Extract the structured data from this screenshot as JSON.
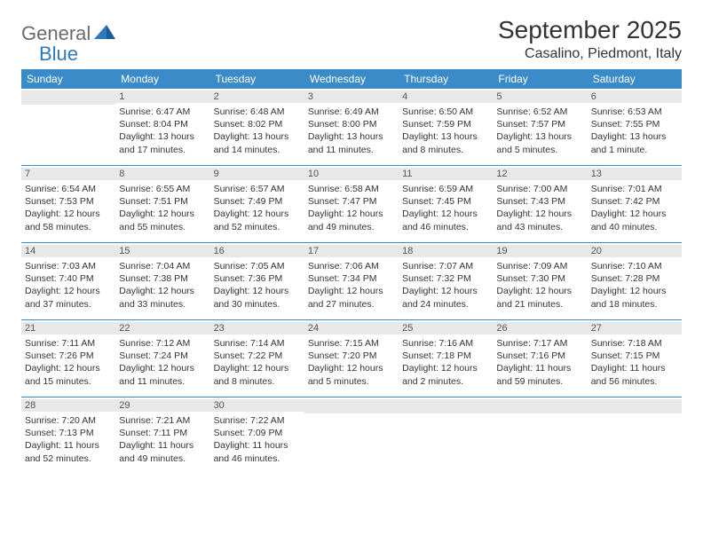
{
  "logo": {
    "textA": "General",
    "textB": "Blue"
  },
  "title": "September 2025",
  "location": "Casalino, Piedmont, Italy",
  "colors": {
    "header_blue": "#3b8bc9",
    "logo_blue": "#2f78bd",
    "logo_gray": "#6b6b6b",
    "day_strip": "#e8e8e8",
    "text": "#333333",
    "white": "#ffffff"
  },
  "dayNames": [
    "Sunday",
    "Monday",
    "Tuesday",
    "Wednesday",
    "Thursday",
    "Friday",
    "Saturday"
  ],
  "weeks": [
    [
      null,
      {
        "n": "1",
        "sr": "Sunrise: 6:47 AM",
        "ss": "Sunset: 8:04 PM",
        "dl1": "Daylight: 13 hours",
        "dl2": "and 17 minutes."
      },
      {
        "n": "2",
        "sr": "Sunrise: 6:48 AM",
        "ss": "Sunset: 8:02 PM",
        "dl1": "Daylight: 13 hours",
        "dl2": "and 14 minutes."
      },
      {
        "n": "3",
        "sr": "Sunrise: 6:49 AM",
        "ss": "Sunset: 8:00 PM",
        "dl1": "Daylight: 13 hours",
        "dl2": "and 11 minutes."
      },
      {
        "n": "4",
        "sr": "Sunrise: 6:50 AM",
        "ss": "Sunset: 7:59 PM",
        "dl1": "Daylight: 13 hours",
        "dl2": "and 8 minutes."
      },
      {
        "n": "5",
        "sr": "Sunrise: 6:52 AM",
        "ss": "Sunset: 7:57 PM",
        "dl1": "Daylight: 13 hours",
        "dl2": "and 5 minutes."
      },
      {
        "n": "6",
        "sr": "Sunrise: 6:53 AM",
        "ss": "Sunset: 7:55 PM",
        "dl1": "Daylight: 13 hours",
        "dl2": "and 1 minute."
      }
    ],
    [
      {
        "n": "7",
        "sr": "Sunrise: 6:54 AM",
        "ss": "Sunset: 7:53 PM",
        "dl1": "Daylight: 12 hours",
        "dl2": "and 58 minutes."
      },
      {
        "n": "8",
        "sr": "Sunrise: 6:55 AM",
        "ss": "Sunset: 7:51 PM",
        "dl1": "Daylight: 12 hours",
        "dl2": "and 55 minutes."
      },
      {
        "n": "9",
        "sr": "Sunrise: 6:57 AM",
        "ss": "Sunset: 7:49 PM",
        "dl1": "Daylight: 12 hours",
        "dl2": "and 52 minutes."
      },
      {
        "n": "10",
        "sr": "Sunrise: 6:58 AM",
        "ss": "Sunset: 7:47 PM",
        "dl1": "Daylight: 12 hours",
        "dl2": "and 49 minutes."
      },
      {
        "n": "11",
        "sr": "Sunrise: 6:59 AM",
        "ss": "Sunset: 7:45 PM",
        "dl1": "Daylight: 12 hours",
        "dl2": "and 46 minutes."
      },
      {
        "n": "12",
        "sr": "Sunrise: 7:00 AM",
        "ss": "Sunset: 7:43 PM",
        "dl1": "Daylight: 12 hours",
        "dl2": "and 43 minutes."
      },
      {
        "n": "13",
        "sr": "Sunrise: 7:01 AM",
        "ss": "Sunset: 7:42 PM",
        "dl1": "Daylight: 12 hours",
        "dl2": "and 40 minutes."
      }
    ],
    [
      {
        "n": "14",
        "sr": "Sunrise: 7:03 AM",
        "ss": "Sunset: 7:40 PM",
        "dl1": "Daylight: 12 hours",
        "dl2": "and 37 minutes."
      },
      {
        "n": "15",
        "sr": "Sunrise: 7:04 AM",
        "ss": "Sunset: 7:38 PM",
        "dl1": "Daylight: 12 hours",
        "dl2": "and 33 minutes."
      },
      {
        "n": "16",
        "sr": "Sunrise: 7:05 AM",
        "ss": "Sunset: 7:36 PM",
        "dl1": "Daylight: 12 hours",
        "dl2": "and 30 minutes."
      },
      {
        "n": "17",
        "sr": "Sunrise: 7:06 AM",
        "ss": "Sunset: 7:34 PM",
        "dl1": "Daylight: 12 hours",
        "dl2": "and 27 minutes."
      },
      {
        "n": "18",
        "sr": "Sunrise: 7:07 AM",
        "ss": "Sunset: 7:32 PM",
        "dl1": "Daylight: 12 hours",
        "dl2": "and 24 minutes."
      },
      {
        "n": "19",
        "sr": "Sunrise: 7:09 AM",
        "ss": "Sunset: 7:30 PM",
        "dl1": "Daylight: 12 hours",
        "dl2": "and 21 minutes."
      },
      {
        "n": "20",
        "sr": "Sunrise: 7:10 AM",
        "ss": "Sunset: 7:28 PM",
        "dl1": "Daylight: 12 hours",
        "dl2": "and 18 minutes."
      }
    ],
    [
      {
        "n": "21",
        "sr": "Sunrise: 7:11 AM",
        "ss": "Sunset: 7:26 PM",
        "dl1": "Daylight: 12 hours",
        "dl2": "and 15 minutes."
      },
      {
        "n": "22",
        "sr": "Sunrise: 7:12 AM",
        "ss": "Sunset: 7:24 PM",
        "dl1": "Daylight: 12 hours",
        "dl2": "and 11 minutes."
      },
      {
        "n": "23",
        "sr": "Sunrise: 7:14 AM",
        "ss": "Sunset: 7:22 PM",
        "dl1": "Daylight: 12 hours",
        "dl2": "and 8 minutes."
      },
      {
        "n": "24",
        "sr": "Sunrise: 7:15 AM",
        "ss": "Sunset: 7:20 PM",
        "dl1": "Daylight: 12 hours",
        "dl2": "and 5 minutes."
      },
      {
        "n": "25",
        "sr": "Sunrise: 7:16 AM",
        "ss": "Sunset: 7:18 PM",
        "dl1": "Daylight: 12 hours",
        "dl2": "and 2 minutes."
      },
      {
        "n": "26",
        "sr": "Sunrise: 7:17 AM",
        "ss": "Sunset: 7:16 PM",
        "dl1": "Daylight: 11 hours",
        "dl2": "and 59 minutes."
      },
      {
        "n": "27",
        "sr": "Sunrise: 7:18 AM",
        "ss": "Sunset: 7:15 PM",
        "dl1": "Daylight: 11 hours",
        "dl2": "and 56 minutes."
      }
    ],
    [
      {
        "n": "28",
        "sr": "Sunrise: 7:20 AM",
        "ss": "Sunset: 7:13 PM",
        "dl1": "Daylight: 11 hours",
        "dl2": "and 52 minutes."
      },
      {
        "n": "29",
        "sr": "Sunrise: 7:21 AM",
        "ss": "Sunset: 7:11 PM",
        "dl1": "Daylight: 11 hours",
        "dl2": "and 49 minutes."
      },
      {
        "n": "30",
        "sr": "Sunrise: 7:22 AM",
        "ss": "Sunset: 7:09 PM",
        "dl1": "Daylight: 11 hours",
        "dl2": "and 46 minutes."
      },
      null,
      null,
      null,
      null
    ]
  ]
}
